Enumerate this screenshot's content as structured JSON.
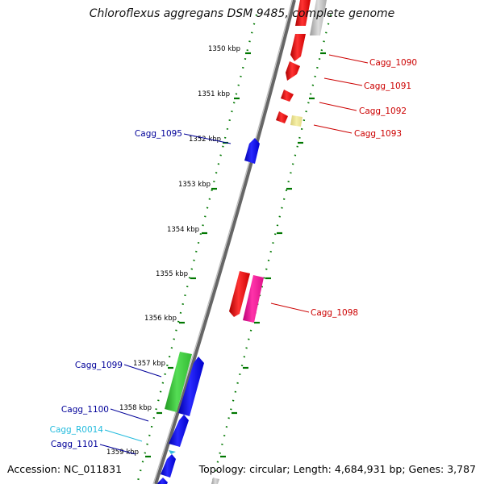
{
  "title": "Chloroflexus aggregans DSM 9485, complete genome",
  "footer": {
    "accession": "Accession: NC_011831",
    "stats": "Topology: circular; Length: 4,684,931 bp; Genes: 3,787"
  },
  "ticks": [
    "1350 kbp",
    "1351 kbp",
    "1352 kbp",
    "1353 kbp",
    "1354 kbp",
    "1355 kbp",
    "1356 kbp",
    "1357 kbp",
    "1358 kbp",
    "1359 kbp"
  ],
  "labels": {
    "cagg_1090": "Cagg_1090",
    "cagg_1091": "Cagg_1091",
    "cagg_1092": "Cagg_1092",
    "cagg_1093": "Cagg_1093",
    "cagg_1095": "Cagg_1095",
    "cagg_1098": "Cagg_1098",
    "cagg_1099": "Cagg_1099",
    "cagg_1100": "Cagg_1100",
    "cagg_r0014": "Cagg_R0014",
    "cagg_1101": "Cagg_1101"
  },
  "colors": {
    "cds_red": "#ee1111",
    "cds_blue": "#1111ee",
    "cds_green": "#33cc33",
    "cds_magenta": "#ee1199",
    "cds_pale_yellow": "#f0e68c",
    "cds_gray": "#bbbbbb",
    "rna_cyan": "#33bbdd",
    "label_red": "#cc0000",
    "label_blue": "#000099",
    "label_cyan": "#22bbdd",
    "tick_green": "#007700",
    "backbone": "#666666"
  }
}
